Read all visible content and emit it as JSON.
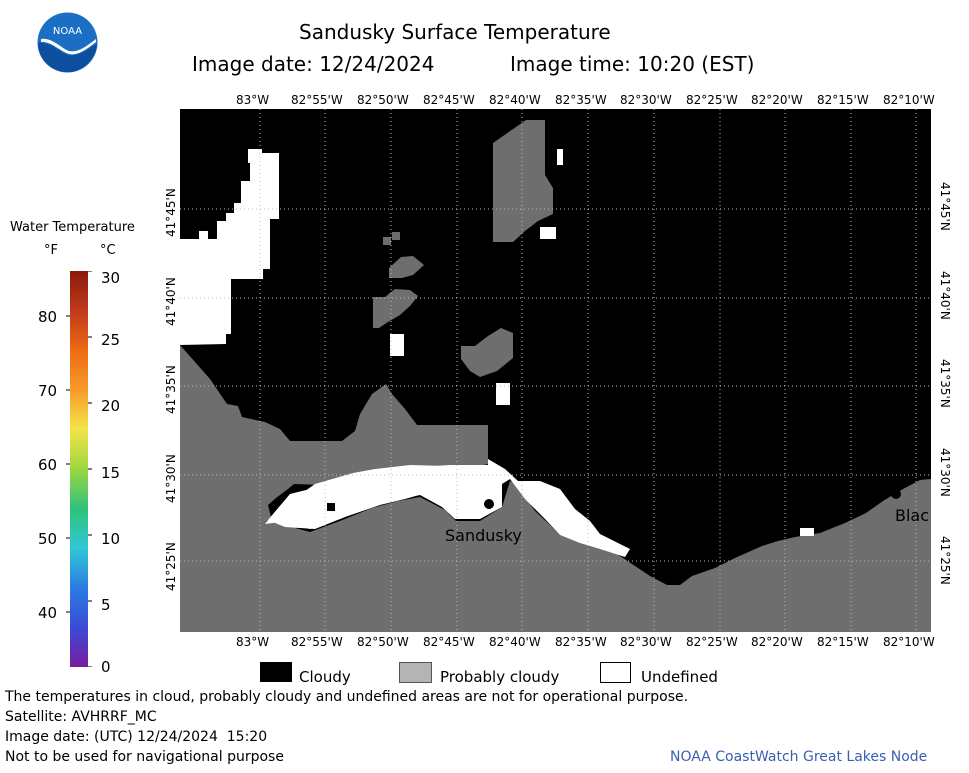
{
  "header": {
    "title": "Sandusky Surface Temperature",
    "image_date": "Image date: 12/24/2024",
    "image_time": "Image time: 10:20 (EST)"
  },
  "logo": {
    "text": "NOAA"
  },
  "lon_ticks": [
    "83°W",
    "82°55'W",
    "82°50'W",
    "82°45'W",
    "82°40'W",
    "82°35'W",
    "82°30'W",
    "82°25'W",
    "82°20'W",
    "82°15'W",
    "82°10'W"
  ],
  "lat_ticks": [
    "41°45'N",
    "41°40'N",
    "41°35'N",
    "41°30'N",
    "41°25'N"
  ],
  "places": {
    "sandusky": "Sandusky",
    "blac": "Blac"
  },
  "temp_scale": {
    "title": "Water Temperature",
    "unit_f": "°F",
    "unit_c": "°C",
    "f_labels": [
      "80",
      "70",
      "60",
      "50",
      "40"
    ],
    "c_labels": [
      "30",
      "25",
      "20",
      "15",
      "10",
      "5",
      "0"
    ]
  },
  "legend": {
    "cloudy": "Cloudy",
    "probably_cloudy": "Probably cloudy",
    "undefined": "Undefined"
  },
  "footer": {
    "note": "The temperatures in cloud, probably cloudy and undefined areas are not for operational purpose.",
    "satellite": "Satellite: AVHRRF_MC",
    "utc_date": "Image date: (UTC) 12/24/2024  15:20",
    "nav_warning": "Not to be used for navigational purpose",
    "credit": "NOAA CoastWatch Great Lakes Node"
  },
  "colors": {
    "cloudy": "#000000",
    "probably_cloudy": "#6e6e6e",
    "undefined": "#ffffff",
    "credit": "#3a5fb0"
  }
}
